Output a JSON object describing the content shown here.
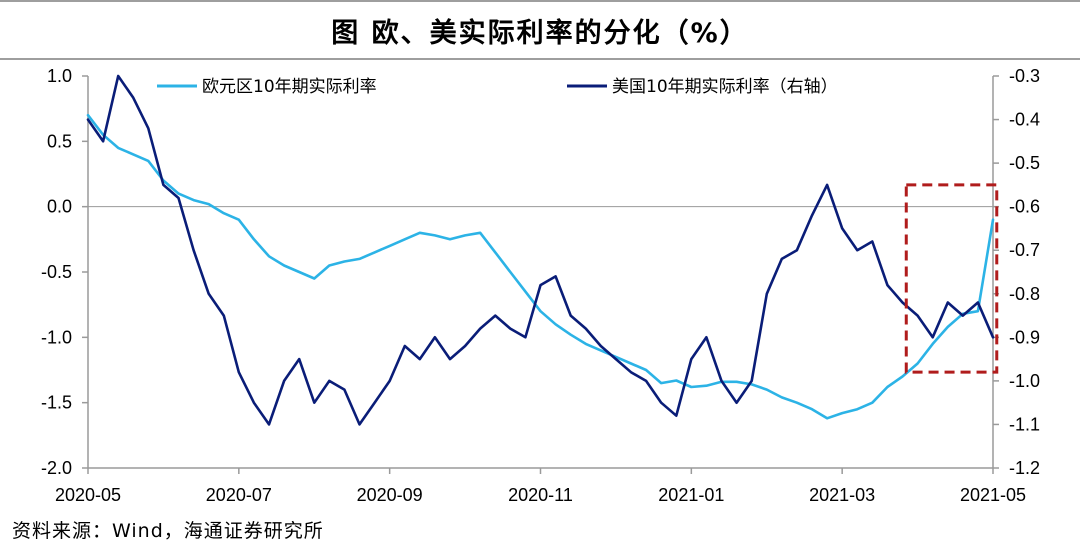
{
  "title": "图  欧、美实际利率的分化（%）",
  "source": "资料来源：Wind，海通证券研究所",
  "colors": {
    "eu": "#2cb3e6",
    "us": "#0a1d78",
    "highlight": "#b01c1c"
  },
  "chart_data": {
    "type": "line",
    "x_ticks": [
      "2020-05",
      "2020-07",
      "2020-09",
      "2020-11",
      "2021-01",
      "2021-03",
      "2021-05"
    ],
    "x_range": [
      0,
      12
    ],
    "y_left": {
      "ticks": [
        "1.0",
        "0.5",
        "0.0",
        "-0.5",
        "-1.0",
        "-1.5",
        "-2.0"
      ],
      "range": [
        -2.0,
        1.0
      ]
    },
    "y_right": {
      "ticks": [
        "-0.3",
        "-0.4",
        "-0.5",
        "-0.6",
        "-0.7",
        "-0.8",
        "-0.9",
        "-1.0",
        "-1.1",
        "-1.2"
      ],
      "range": [
        -1.2,
        -0.3
      ]
    },
    "zero_line": true,
    "legend_position": "top",
    "series": [
      {
        "name": "欧元区10年期实际利率",
        "axis": "left",
        "color": "#2cb3e6",
        "points": [
          [
            0.0,
            0.7
          ],
          [
            0.2,
            0.55
          ],
          [
            0.4,
            0.45
          ],
          [
            0.6,
            0.4
          ],
          [
            0.8,
            0.35
          ],
          [
            1.0,
            0.2
          ],
          [
            1.2,
            0.1
          ],
          [
            1.4,
            0.05
          ],
          [
            1.6,
            0.02
          ],
          [
            1.8,
            -0.05
          ],
          [
            2.0,
            -0.1
          ],
          [
            2.2,
            -0.25
          ],
          [
            2.4,
            -0.38
          ],
          [
            2.6,
            -0.45
          ],
          [
            2.8,
            -0.5
          ],
          [
            3.0,
            -0.55
          ],
          [
            3.2,
            -0.45
          ],
          [
            3.4,
            -0.42
          ],
          [
            3.6,
            -0.4
          ],
          [
            3.8,
            -0.35
          ],
          [
            4.0,
            -0.3
          ],
          [
            4.2,
            -0.25
          ],
          [
            4.4,
            -0.2
          ],
          [
            4.6,
            -0.22
          ],
          [
            4.8,
            -0.25
          ],
          [
            5.0,
            -0.22
          ],
          [
            5.2,
            -0.2
          ],
          [
            5.4,
            -0.35
          ],
          [
            5.6,
            -0.5
          ],
          [
            5.8,
            -0.65
          ],
          [
            6.0,
            -0.8
          ],
          [
            6.2,
            -0.9
          ],
          [
            6.4,
            -0.98
          ],
          [
            6.6,
            -1.05
          ],
          [
            6.8,
            -1.1
          ],
          [
            7.0,
            -1.15
          ],
          [
            7.2,
            -1.2
          ],
          [
            7.4,
            -1.25
          ],
          [
            7.6,
            -1.35
          ],
          [
            7.8,
            -1.33
          ],
          [
            8.0,
            -1.38
          ],
          [
            8.2,
            -1.37
          ],
          [
            8.4,
            -1.34
          ],
          [
            8.6,
            -1.34
          ],
          [
            8.8,
            -1.36
          ],
          [
            9.0,
            -1.4
          ],
          [
            9.2,
            -1.46
          ],
          [
            9.4,
            -1.5
          ],
          [
            9.6,
            -1.55
          ],
          [
            9.8,
            -1.62
          ],
          [
            10.0,
            -1.58
          ],
          [
            10.2,
            -1.55
          ],
          [
            10.4,
            -1.5
          ],
          [
            10.6,
            -1.38
          ],
          [
            10.8,
            -1.3
          ],
          [
            11.0,
            -1.2
          ],
          [
            11.2,
            -1.05
          ],
          [
            11.4,
            -0.92
          ],
          [
            11.6,
            -0.82
          ],
          [
            11.8,
            -0.8
          ],
          [
            12.0,
            -0.1
          ]
        ]
      },
      {
        "name": "美国10年期实际利率（右轴）",
        "axis": "right",
        "color": "#0a1d78",
        "points": [
          [
            0.0,
            -0.4
          ],
          [
            0.2,
            -0.45
          ],
          [
            0.4,
            -0.3
          ],
          [
            0.6,
            -0.35
          ],
          [
            0.8,
            -0.42
          ],
          [
            1.0,
            -0.55
          ],
          [
            1.2,
            -0.58
          ],
          [
            1.4,
            -0.7
          ],
          [
            1.6,
            -0.8
          ],
          [
            1.8,
            -0.85
          ],
          [
            2.0,
            -0.98
          ],
          [
            2.2,
            -1.05
          ],
          [
            2.4,
            -1.1
          ],
          [
            2.6,
            -1.0
          ],
          [
            2.8,
            -0.95
          ],
          [
            3.0,
            -1.05
          ],
          [
            3.2,
            -1.0
          ],
          [
            3.4,
            -1.02
          ],
          [
            3.6,
            -1.1
          ],
          [
            3.8,
            -1.05
          ],
          [
            4.0,
            -1.0
          ],
          [
            4.2,
            -0.92
          ],
          [
            4.4,
            -0.95
          ],
          [
            4.6,
            -0.9
          ],
          [
            4.8,
            -0.95
          ],
          [
            5.0,
            -0.92
          ],
          [
            5.2,
            -0.88
          ],
          [
            5.4,
            -0.85
          ],
          [
            5.6,
            -0.88
          ],
          [
            5.8,
            -0.9
          ],
          [
            6.0,
            -0.78
          ],
          [
            6.2,
            -0.76
          ],
          [
            6.4,
            -0.85
          ],
          [
            6.6,
            -0.88
          ],
          [
            6.8,
            -0.92
          ],
          [
            7.0,
            -0.95
          ],
          [
            7.2,
            -0.98
          ],
          [
            7.4,
            -1.0
          ],
          [
            7.6,
            -1.05
          ],
          [
            7.8,
            -1.08
          ],
          [
            8.0,
            -0.95
          ],
          [
            8.2,
            -0.9
          ],
          [
            8.4,
            -1.0
          ],
          [
            8.6,
            -1.05
          ],
          [
            8.8,
            -1.0
          ],
          [
            9.0,
            -0.8
          ],
          [
            9.2,
            -0.72
          ],
          [
            9.4,
            -0.7
          ],
          [
            9.6,
            -0.62
          ],
          [
            9.8,
            -0.55
          ],
          [
            10.0,
            -0.65
          ],
          [
            10.2,
            -0.7
          ],
          [
            10.4,
            -0.68
          ],
          [
            10.6,
            -0.78
          ],
          [
            10.8,
            -0.82
          ],
          [
            11.0,
            -0.85
          ],
          [
            11.2,
            -0.9
          ],
          [
            11.4,
            -0.82
          ],
          [
            11.6,
            -0.85
          ],
          [
            11.8,
            -0.82
          ],
          [
            12.0,
            -0.9
          ]
        ]
      }
    ],
    "annotations": [
      {
        "type": "dashed-rect",
        "x_range": [
          10.85,
          12.05
        ],
        "y_right_range": [
          -0.98,
          -0.55
        ]
      }
    ]
  }
}
